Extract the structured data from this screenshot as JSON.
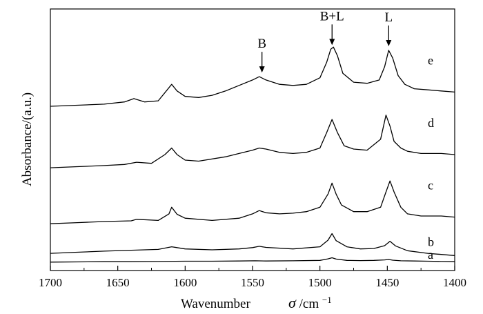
{
  "chart_data": {
    "type": "line",
    "title": "",
    "xlabel": "Wavenumber",
    "xlabel_symbol": "σ",
    "xlabel_unit": "/cm",
    "xlabel_unit_exp": "−1",
    "ylabel": "Absorbance/(a.u.)",
    "xlim": [
      1700,
      1400
    ],
    "x_reversed": true,
    "ylim": [
      0,
      1
    ],
    "y_ticks_shown": false,
    "x_ticks": [
      1700,
      1650,
      1600,
      1550,
      1500,
      1450,
      1400
    ],
    "x_tick_labels": [
      "1700",
      "1650",
      "1600",
      "1550",
      "1500",
      "1450",
      "1400"
    ],
    "grid": false,
    "legend": "none",
    "line_color": "#000000",
    "series": [
      {
        "name": "a",
        "x": [
          1700,
          1680,
          1660,
          1640,
          1620,
          1600,
          1580,
          1560,
          1548,
          1540,
          1520,
          1500,
          1494,
          1491,
          1488,
          1480,
          1470,
          1460,
          1452,
          1449,
          1446,
          1440,
          1430,
          1420,
          1410,
          1400
        ],
        "y": [
          0.01,
          0.011,
          0.012,
          0.012,
          0.013,
          0.014,
          0.014,
          0.015,
          0.016,
          0.015,
          0.016,
          0.018,
          0.025,
          0.03,
          0.024,
          0.018,
          0.017,
          0.018,
          0.02,
          0.022,
          0.019,
          0.016,
          0.015,
          0.014,
          0.013,
          0.012
        ]
      },
      {
        "name": "b",
        "x": [
          1700,
          1680,
          1660,
          1640,
          1620,
          1610,
          1600,
          1580,
          1560,
          1550,
          1545,
          1540,
          1520,
          1500,
          1494,
          1491,
          1488,
          1480,
          1470,
          1460,
          1452,
          1448,
          1444,
          1435,
          1420,
          1410,
          1400
        ],
        "y": [
          0.05,
          0.055,
          0.06,
          0.064,
          0.068,
          0.08,
          0.07,
          0.066,
          0.07,
          0.076,
          0.082,
          0.077,
          0.07,
          0.08,
          0.11,
          0.14,
          0.108,
          0.08,
          0.07,
          0.072,
          0.085,
          0.105,
          0.084,
          0.062,
          0.05,
          0.045,
          0.04
        ]
      },
      {
        "name": "c",
        "x": [
          1700,
          1680,
          1660,
          1640,
          1636,
          1620,
          1612,
          1610,
          1606,
          1600,
          1580,
          1560,
          1550,
          1545,
          1540,
          1530,
          1520,
          1510,
          1500,
          1494,
          1491,
          1488,
          1484,
          1475,
          1465,
          1455,
          1451,
          1448,
          1445,
          1440,
          1435,
          1425,
          1410,
          1400
        ],
        "y": [
          0.185,
          0.19,
          0.195,
          0.198,
          0.205,
          0.2,
          0.23,
          0.26,
          0.228,
          0.21,
          0.2,
          0.21,
          0.23,
          0.245,
          0.235,
          0.23,
          0.233,
          0.24,
          0.26,
          0.32,
          0.37,
          0.32,
          0.27,
          0.24,
          0.24,
          0.26,
          0.33,
          0.38,
          0.33,
          0.26,
          0.23,
          0.22,
          0.22,
          0.215
        ]
      },
      {
        "name": "d",
        "x": [
          1700,
          1680,
          1660,
          1645,
          1636,
          1625,
          1615,
          1610,
          1606,
          1600,
          1590,
          1570,
          1560,
          1550,
          1545,
          1540,
          1530,
          1520,
          1510,
          1500,
          1495,
          1491,
          1487,
          1482,
          1475,
          1465,
          1455,
          1451,
          1448,
          1445,
          1440,
          1435,
          1425,
          1410,
          1400
        ],
        "y": [
          0.44,
          0.445,
          0.45,
          0.455,
          0.465,
          0.46,
          0.5,
          0.53,
          0.5,
          0.475,
          0.47,
          0.49,
          0.505,
          0.52,
          0.53,
          0.525,
          0.51,
          0.505,
          0.51,
          0.53,
          0.6,
          0.66,
          0.6,
          0.54,
          0.525,
          0.52,
          0.57,
          0.68,
          0.63,
          0.56,
          0.53,
          0.515,
          0.505,
          0.505,
          0.5
        ]
      },
      {
        "name": "e",
        "x": [
          1700,
          1680,
          1660,
          1645,
          1638,
          1630,
          1620,
          1614,
          1610,
          1606,
          1600,
          1590,
          1580,
          1570,
          1560,
          1550,
          1545,
          1540,
          1530,
          1520,
          1510,
          1500,
          1495,
          1492,
          1490,
          1487,
          1483,
          1475,
          1465,
          1456,
          1452,
          1449,
          1446,
          1442,
          1437,
          1430,
          1420,
          1410,
          1400
        ],
        "y": [
          0.72,
          0.725,
          0.73,
          0.74,
          0.755,
          0.74,
          0.745,
          0.79,
          0.82,
          0.79,
          0.765,
          0.76,
          0.77,
          0.79,
          0.815,
          0.84,
          0.855,
          0.84,
          0.82,
          0.815,
          0.82,
          0.85,
          0.92,
          0.98,
          0.99,
          0.95,
          0.87,
          0.83,
          0.825,
          0.84,
          0.9,
          0.975,
          0.94,
          0.86,
          0.82,
          0.8,
          0.795,
          0.79,
          0.785
        ]
      }
    ],
    "curve_labels": [
      "e",
      "d",
      "c",
      "b",
      "a"
    ],
    "annotations": [
      {
        "text": "B",
        "x": 1543,
        "arrow": "down"
      },
      {
        "text": "B+L",
        "x": 1491,
        "arrow": "down"
      },
      {
        "text": "L",
        "x": 1449,
        "arrow": "down"
      }
    ]
  }
}
